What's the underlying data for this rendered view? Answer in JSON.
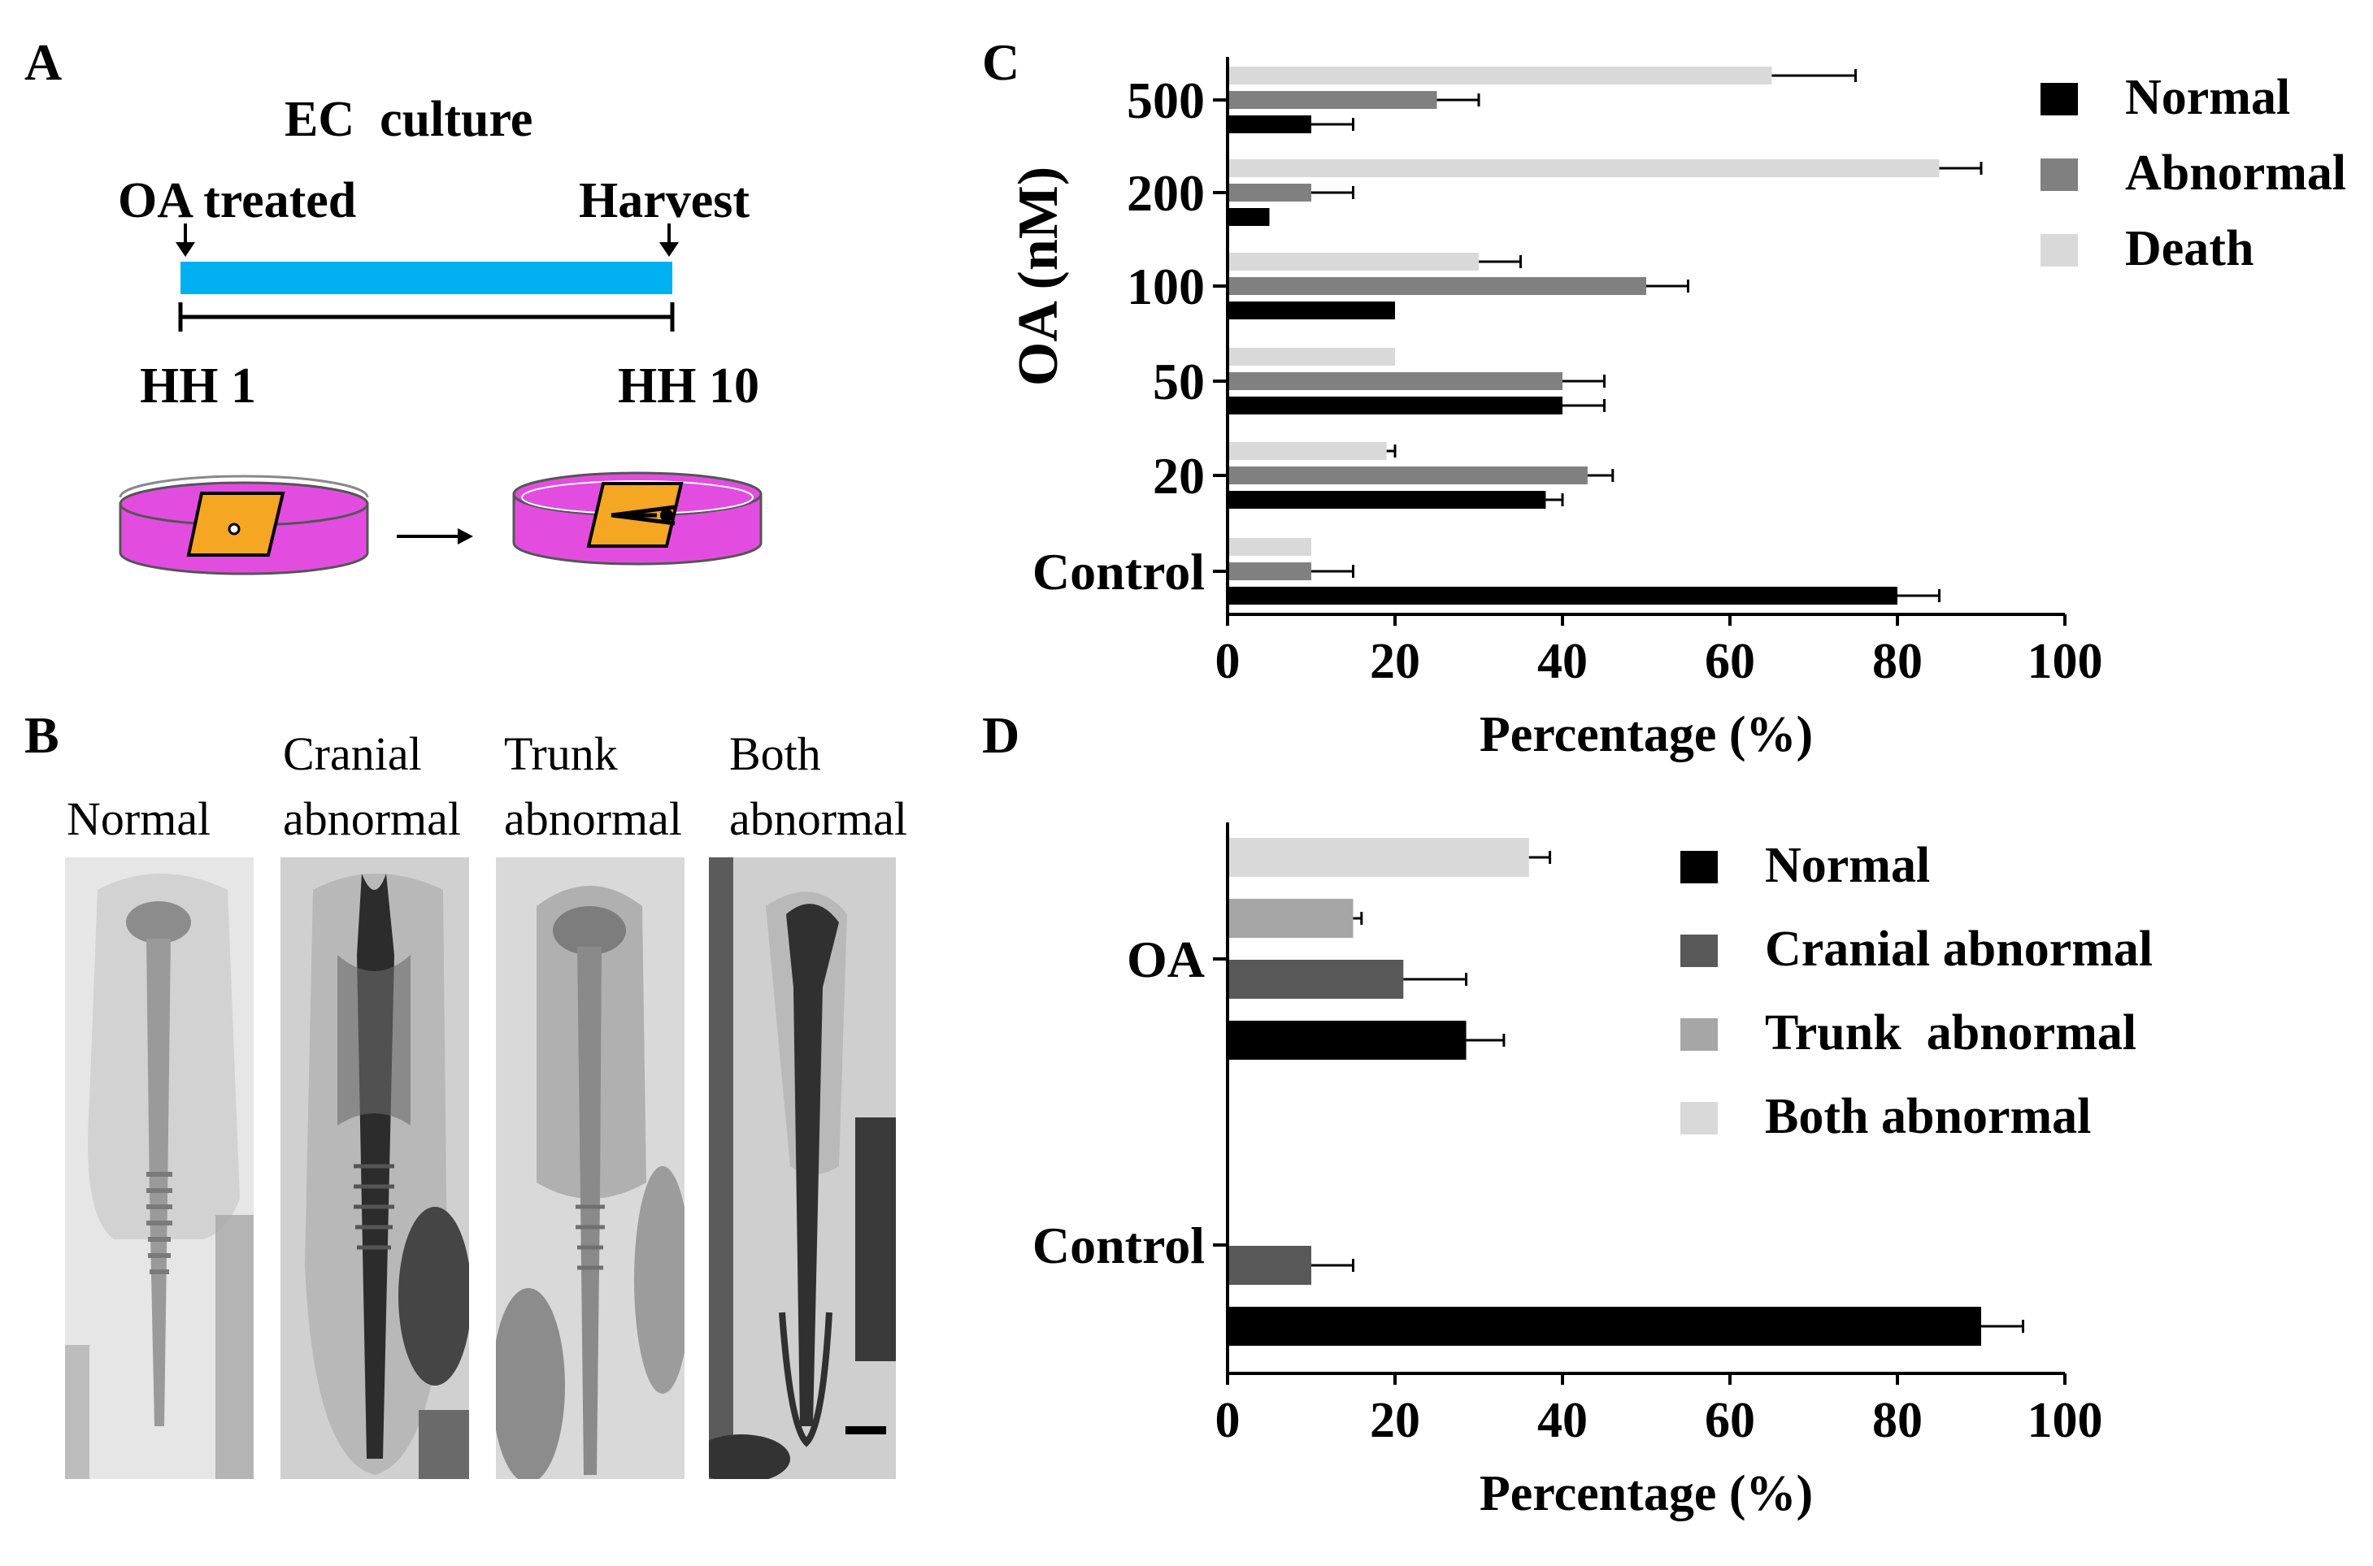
{
  "panels": {
    "a": {
      "letter": "A",
      "title": "EC  culture",
      "start_label": "OA treated",
      "end_label": "Harvest",
      "start_stage": "HH 1",
      "end_stage": "HH 10",
      "bar_color": "#00b0f0",
      "dish_color": "#e24de0",
      "embryo_color": "#f5a623"
    },
    "b": {
      "letter": "B",
      "photos": [
        {
          "label_line1": "",
          "label_line2": "Normal"
        },
        {
          "label_line1": "Cranial",
          "label_line2": "abnormal"
        },
        {
          "label_line1": "Trunk",
          "label_line2": "abnormal"
        },
        {
          "label_line1": "Both",
          "label_line2": "abnormal"
        }
      ]
    },
    "c": {
      "letter": "C"
    },
    "d": {
      "letter": "D"
    }
  },
  "chart_data": [
    {
      "id": "C",
      "type": "bar",
      "orientation": "horizontal",
      "categories": [
        "Control",
        "20",
        "50",
        "100",
        "200",
        "500"
      ],
      "series": [
        {
          "name": "Normal",
          "color": "#000000",
          "values": [
            80,
            38,
            40,
            20,
            5,
            10
          ],
          "errors": [
            5,
            2,
            5,
            0,
            0,
            5
          ]
        },
        {
          "name": "Abnormal",
          "color": "#808080",
          "values": [
            10,
            43,
            40,
            50,
            10,
            25
          ],
          "errors": [
            5,
            3,
            5,
            5,
            5,
            5
          ]
        },
        {
          "name": "Death",
          "color": "#d9d9d9",
          "values": [
            10,
            19,
            20,
            30,
            85,
            65
          ],
          "errors": [
            0,
            1,
            0,
            5,
            5,
            10
          ]
        }
      ],
      "xlabel": "Percentage (%)",
      "ylabel": "OA (nM)",
      "xlim": [
        0,
        100
      ],
      "xticks": [
        0,
        20,
        40,
        60,
        80,
        100
      ],
      "legend": "top-right",
      "grid": false
    },
    {
      "id": "D",
      "type": "bar",
      "orientation": "horizontal",
      "categories": [
        "Control",
        "OA"
      ],
      "series": [
        {
          "name": "Normal",
          "color": "#000000",
          "values": [
            90,
            28.5
          ],
          "errors": [
            5,
            4.5
          ]
        },
        {
          "name": "Cranial abnormal",
          "color": "#595959",
          "values": [
            10,
            21
          ],
          "errors": [
            5,
            7.5
          ]
        },
        {
          "name": "Trunk  abnormal",
          "color": "#a6a6a6",
          "values": [
            0,
            15
          ],
          "errors": [
            0,
            1
          ]
        },
        {
          "name": "Both abnormal",
          "color": "#d9d9d9",
          "values": [
            0,
            36
          ],
          "errors": [
            0,
            2.5
          ]
        }
      ],
      "xlabel": "Percentage (%)",
      "ylabel": "",
      "xlim": [
        0,
        100
      ],
      "xticks": [
        0,
        20,
        40,
        60,
        80,
        100
      ],
      "legend": "top-right",
      "grid": false
    }
  ]
}
